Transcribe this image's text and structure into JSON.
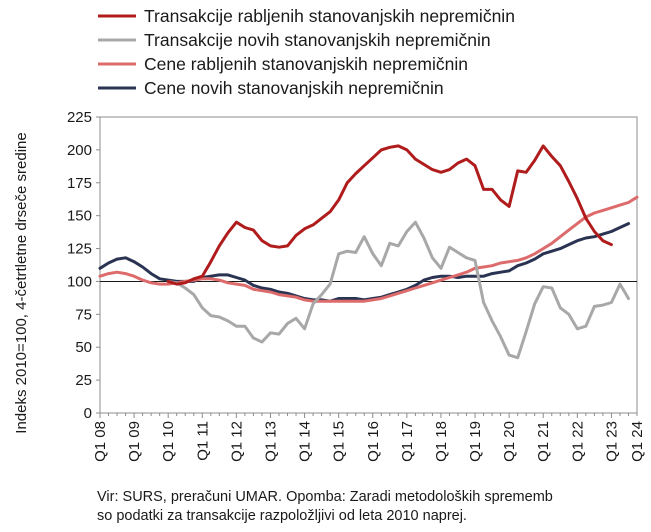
{
  "chart_data": {
    "type": "line",
    "title": "",
    "ylabel": "Indeks 2010=100, 4-četrtletne drseče sredine",
    "xlabel": "",
    "ylim": [
      0,
      225
    ],
    "yticks": [
      0,
      25,
      50,
      75,
      100,
      125,
      150,
      175,
      200,
      225
    ],
    "reference_line": 100,
    "grid": false,
    "legend_position": "top",
    "x_tick_labels": [
      "Q1 08",
      "Q1 09",
      "Q1 10",
      "Q1 11",
      "Q1 12",
      "Q1 13",
      "Q1 14",
      "Q1 15",
      "Q1 16",
      "Q1 17",
      "Q1 18",
      "Q1 19",
      "Q1 20",
      "Q1 21",
      "Q1 22",
      "Q1 23",
      "Q1 24"
    ],
    "x_start": "Q1 08",
    "series": [
      {
        "name": "Transakcije rabljenih stanovanjskih nepremičnin",
        "color": "#b01c1c",
        "start_index": 8,
        "values": [
          100,
          98,
          99,
          102,
          104,
          115,
          127,
          137,
          145,
          141,
          139,
          131,
          127,
          126,
          127,
          135,
          140,
          143,
          148,
          153,
          162,
          175,
          182,
          188,
          194,
          200,
          202,
          203,
          200,
          193,
          189,
          185,
          183,
          185,
          190,
          193,
          188,
          170,
          170,
          162,
          157,
          184,
          183,
          192,
          203,
          195,
          188,
          176,
          163,
          148,
          138,
          131,
          128
        ]
      },
      {
        "name": "Transakcije novih stanovanjskih nepremičnin",
        "color": "#a8a8a8",
        "start_index": 8,
        "values": [
          100,
          99,
          95,
          90,
          80,
          74,
          73,
          70,
          66,
          66,
          57,
          54,
          61,
          60,
          68,
          72,
          64,
          83,
          90,
          98,
          121,
          123,
          122,
          134,
          121,
          112,
          129,
          127,
          138,
          145,
          133,
          118,
          110,
          126,
          122,
          118,
          116,
          84,
          70,
          58,
          44,
          42,
          62,
          83,
          96,
          95,
          80,
          75,
          64,
          66,
          81,
          82,
          84,
          98,
          87
        ]
      },
      {
        "name": "Cene rabljenih stanovanjskih nepremičnin",
        "color": "#dd6b6b",
        "start_index": 0,
        "values": [
          104,
          106,
          107,
          106,
          104,
          101,
          99,
          98,
          98,
          99,
          100,
          101,
          102,
          102,
          101,
          99,
          98,
          97,
          94,
          93,
          92,
          90,
          89,
          88,
          86,
          85,
          85,
          85,
          85,
          85,
          85,
          85,
          86,
          87,
          89,
          91,
          93,
          95,
          97,
          99,
          101,
          103,
          105,
          107,
          110,
          111,
          112,
          114,
          115,
          116,
          118,
          121,
          125,
          129,
          134,
          139,
          144,
          149,
          152,
          154,
          156,
          158,
          160,
          164
        ]
      },
      {
        "name": "Cene novih stanovanjskih nepremičnin",
        "color": "#2a3452",
        "start_index": 0,
        "values": [
          110,
          114,
          117,
          118,
          115,
          111,
          106,
          102,
          101,
          100,
          100,
          100,
          103,
          104,
          105,
          105,
          103,
          101,
          97,
          95,
          94,
          92,
          91,
          89,
          87,
          86,
          86,
          85,
          87,
          87,
          87,
          86,
          87,
          88,
          90,
          92,
          94,
          97,
          101,
          103,
          104,
          104,
          103,
          104,
          104,
          104,
          106,
          107,
          108,
          112,
          114,
          117,
          121,
          123,
          125,
          128,
          131,
          133,
          134,
          136,
          138,
          141,
          144
        ]
      }
    ]
  },
  "footnote": {
    "line1": "Vir: SURS, preračuni UMAR. Opomba: Zaradi metodoloških sprememb",
    "line2": "so podatki za transakcije razpoložljivi od leta 2010 naprej."
  }
}
